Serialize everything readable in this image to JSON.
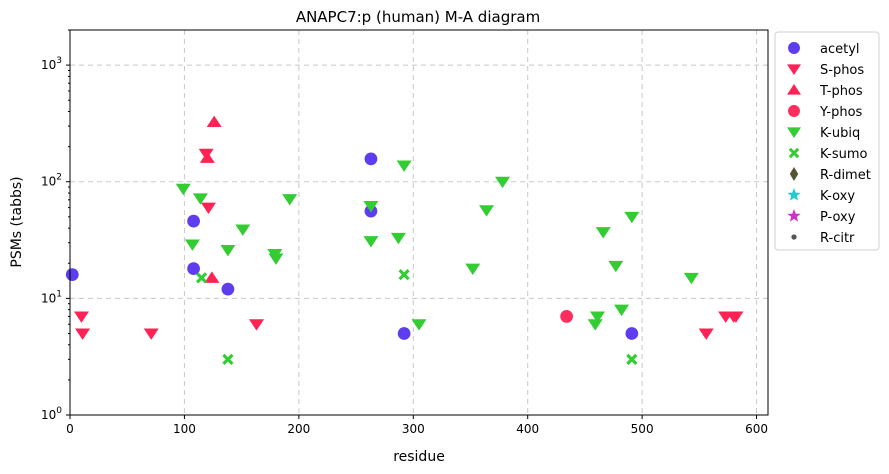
{
  "chart_data": {
    "type": "scatter",
    "title": "ANAPC7:p (human) M-A diagram",
    "xlabel": "residue",
    "ylabel": "PSMs (tabbs)",
    "xlim": [
      0,
      610
    ],
    "ylim": [
      1,
      2000
    ],
    "yscale": "log",
    "x_ticks": [
      0,
      100,
      200,
      300,
      400,
      500,
      600
    ],
    "y_ticks": [
      {
        "value": 1,
        "base": "10",
        "exp": "0"
      },
      {
        "value": 10,
        "base": "10",
        "exp": "1"
      },
      {
        "value": 100,
        "base": "10",
        "exp": "2"
      },
      {
        "value": 1000,
        "base": "10",
        "exp": "3"
      }
    ],
    "grid": true,
    "legend_position": "outside-right",
    "series": [
      {
        "name": "acetyl",
        "marker": "circle",
        "color": "#5533ee",
        "points": [
          [
            2,
            16
          ],
          [
            108,
            46
          ],
          [
            108,
            18
          ],
          [
            138,
            12
          ],
          [
            263,
            157
          ],
          [
            263,
            56
          ],
          [
            292,
            5
          ],
          [
            491,
            5
          ]
        ]
      },
      {
        "name": "S-phos",
        "marker": "triangle-down",
        "color": "#ff2255",
        "points": [
          [
            10,
            7
          ],
          [
            11,
            5
          ],
          [
            71,
            5
          ],
          [
            119,
            174
          ],
          [
            121,
            60
          ],
          [
            163,
            6
          ],
          [
            556,
            5
          ],
          [
            573,
            7
          ],
          [
            580,
            7
          ],
          [
            582,
            7
          ]
        ]
      },
      {
        "name": "T-phos",
        "marker": "triangle-up",
        "color": "#ff2255",
        "points": [
          [
            120,
            160
          ],
          [
            124,
            15
          ],
          [
            126,
            325
          ]
        ]
      },
      {
        "name": "Y-phos",
        "marker": "circle",
        "color": "#ff2255",
        "points": [
          [
            434,
            7
          ]
        ]
      },
      {
        "name": "K-ubiq",
        "marker": "triangle-down",
        "color": "#33cc33",
        "points": [
          [
            99,
            87
          ],
          [
            107,
            29
          ],
          [
            114,
            72
          ],
          [
            138,
            26
          ],
          [
            151,
            39
          ],
          [
            179,
            24
          ],
          [
            180,
            22
          ],
          [
            192,
            71
          ],
          [
            263,
            62
          ],
          [
            263,
            31
          ],
          [
            287,
            33
          ],
          [
            292,
            138
          ],
          [
            305,
            6
          ],
          [
            352,
            18
          ],
          [
            364,
            57
          ],
          [
            378,
            100
          ],
          [
            459,
            6
          ],
          [
            461,
            7
          ],
          [
            466,
            37
          ],
          [
            477,
            19
          ],
          [
            482,
            8
          ],
          [
            491,
            50
          ],
          [
            543,
            15
          ]
        ]
      },
      {
        "name": "K-sumo",
        "marker": "x",
        "color": "#33cc33",
        "points": [
          [
            115,
            15
          ],
          [
            138,
            3
          ],
          [
            292,
            16
          ],
          [
            491,
            3
          ]
        ]
      },
      {
        "name": "R-dimet",
        "marker": "diamond",
        "color": "#555533",
        "points": []
      },
      {
        "name": "K-oxy",
        "marker": "star",
        "color": "#22cccc",
        "points": []
      },
      {
        "name": "P-oxy",
        "marker": "star",
        "color": "#cc33cc",
        "points": []
      },
      {
        "name": "R-citr",
        "marker": "dot",
        "color": "#555555",
        "points": []
      }
    ]
  }
}
